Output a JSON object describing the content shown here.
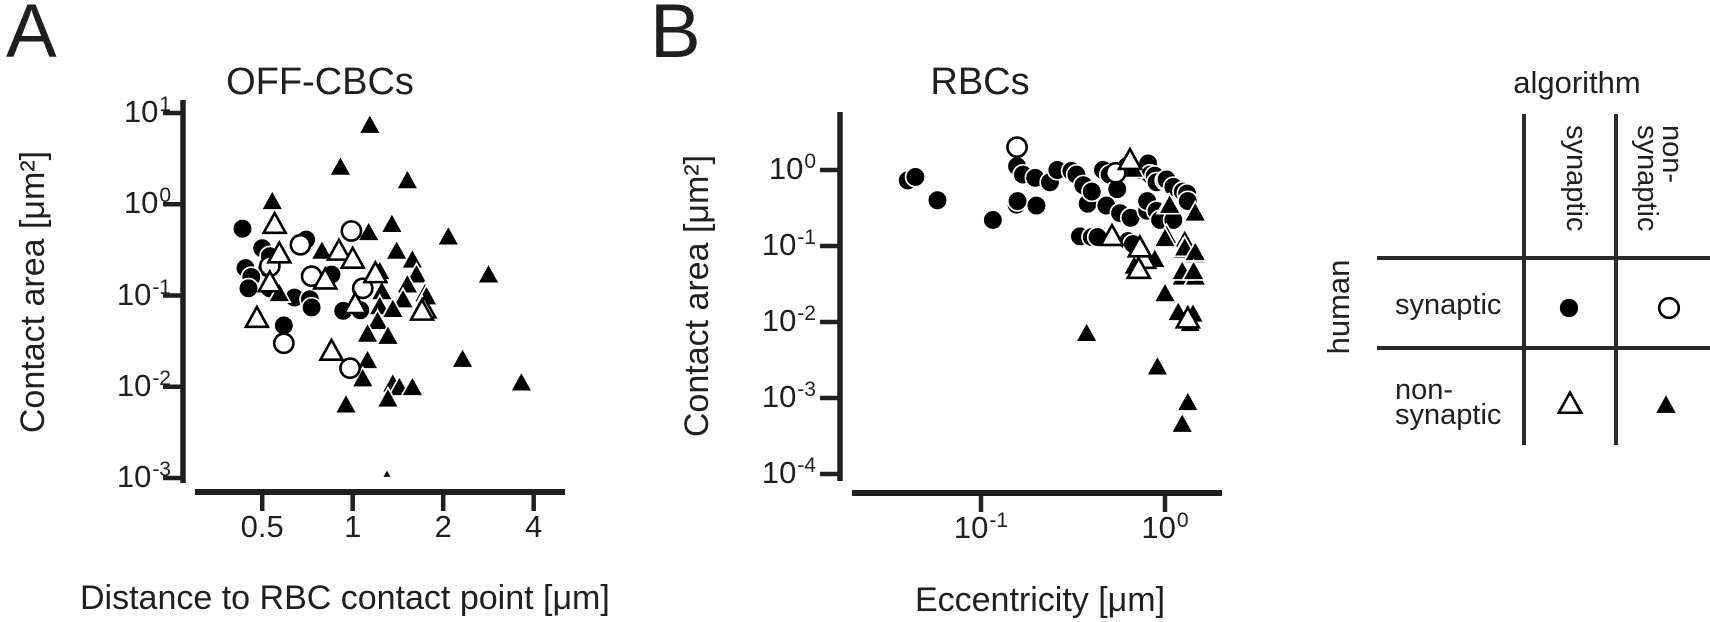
{
  "colors": {
    "ink": "#1f1f1f",
    "marker_fill": "#000000",
    "marker_open_fill": "#ffffff",
    "background": "#ffffff"
  },
  "panels": {
    "a": {
      "label": "A",
      "title": "OFF-CBCs",
      "xlabel": "Distance to RBC contact point [μm]",
      "ylabel": "Contact area [μm²]"
    },
    "b": {
      "label": "B",
      "title": "RBCs",
      "xlabel": "Eccentricity [μm]",
      "ylabel": "Contact area [μm²]"
    }
  },
  "legend": {
    "col_group_label": "algorithm",
    "row_group_label": "human",
    "col_labels": [
      [
        "synaptic"
      ],
      [
        "non-",
        "synaptic"
      ]
    ],
    "row_labels": [
      [
        "synaptic"
      ],
      [
        "non-",
        "synaptic"
      ]
    ],
    "cells": [
      {
        "row": "synaptic",
        "col": "synaptic",
        "marker": "filled-circle"
      },
      {
        "row": "synaptic",
        "col": "non-synaptic",
        "marker": "open-circle"
      },
      {
        "row": "non-synaptic",
        "col": "synaptic",
        "marker": "open-triangle"
      },
      {
        "row": "non-synaptic",
        "col": "non-synaptic",
        "marker": "filled-triangle"
      }
    ]
  },
  "chart_data": [
    {
      "id": "off_cbcs",
      "type": "scatter",
      "title": "OFF-CBCs",
      "xlabel": "Distance to RBC contact point [μm]",
      "ylabel": "Contact area [μm²]",
      "x_scale": "log",
      "y_scale": "log",
      "xlim": [
        0.3,
        5.1
      ],
      "ylim": [
        0.0009,
        14
      ],
      "grid": false,
      "xticks": [
        {
          "v": 0.5,
          "label": "0.5"
        },
        {
          "v": 1,
          "label": "1"
        },
        {
          "v": 2,
          "label": "2"
        },
        {
          "v": 4,
          "label": "4"
        }
      ],
      "yticks": [
        {
          "v": 10,
          "base": "10",
          "exp": "1"
        },
        {
          "v": 1,
          "base": "10",
          "exp": "0"
        },
        {
          "v": 0.1,
          "base": "10",
          "exp": "-1"
        },
        {
          "v": 0.01,
          "base": "10",
          "exp": "-2"
        },
        {
          "v": 0.001,
          "base": "10",
          "exp": "-3"
        }
      ],
      "series": [
        {
          "name": "human synaptic / algorithm synaptic",
          "marker": "filled-circle",
          "points": [
            [
              0.43,
              0.54
            ],
            [
              0.5,
              0.33
            ],
            [
              0.7,
              0.41
            ],
            [
              0.53,
              0.27
            ],
            [
              0.44,
              0.2
            ],
            [
              0.52,
              0.2
            ],
            [
              0.46,
              0.16
            ],
            [
              0.85,
              0.17
            ],
            [
              0.45,
              0.12
            ],
            [
              0.53,
              0.12
            ],
            [
              0.64,
              0.095
            ],
            [
              0.72,
              0.091
            ],
            [
              0.73,
              0.074
            ],
            [
              0.59,
              0.047
            ],
            [
              0.93,
              0.068
            ],
            [
              1.06,
              0.069
            ]
          ]
        },
        {
          "name": "human non-synaptic / algorithm non-synaptic",
          "marker": "filled-triangle",
          "points": [
            [
              1.14,
              7.2
            ],
            [
              0.91,
              2.5
            ],
            [
              1.52,
              1.78
            ],
            [
              0.54,
              1.05
            ],
            [
              1.13,
              0.48
            ],
            [
              1.35,
              0.59
            ],
            [
              2.08,
              0.43
            ],
            [
              2.83,
              0.165
            ],
            [
              0.79,
              0.3
            ],
            [
              1.4,
              0.3
            ],
            [
              1.58,
              0.24
            ],
            [
              1.23,
              0.18
            ],
            [
              1.63,
              0.165
            ],
            [
              0.57,
              0.103
            ],
            [
              1.25,
              0.108
            ],
            [
              1.52,
              0.128
            ],
            [
              1.47,
              0.088
            ],
            [
              1.74,
              0.103
            ],
            [
              1.76,
              0.095
            ],
            [
              1.23,
              0.074
            ],
            [
              1.36,
              0.069
            ],
            [
              1.7,
              0.074
            ],
            [
              1.21,
              0.051
            ],
            [
              1.12,
              0.037
            ],
            [
              1.31,
              0.035
            ],
            [
              1.12,
              0.019
            ],
            [
              2.32,
              0.0196
            ],
            [
              1.08,
              0.012
            ],
            [
              1.36,
              0.0105
            ],
            [
              1.43,
              0.0096
            ],
            [
              1.58,
              0.0096
            ],
            [
              1.31,
              0.0072
            ],
            [
              0.95,
              0.0062
            ],
            [
              3.64,
              0.0108
            ],
            [
              1.3,
              0.0011,
              0.45
            ]
          ]
        },
        {
          "name": "human synaptic / algorithm non-synaptic",
          "marker": "open-circle",
          "points": [
            [
              0.67,
              0.36
            ],
            [
              0.99,
              0.51
            ],
            [
              0.53,
              0.21
            ],
            [
              0.73,
              0.163
            ],
            [
              1.08,
              0.12
            ],
            [
              0.59,
              0.03
            ],
            [
              0.98,
              0.016
            ]
          ]
        },
        {
          "name": "human non-synaptic / algorithm synaptic",
          "marker": "open-triangle",
          "points": [
            [
              0.55,
              0.59
            ],
            [
              0.57,
              0.28
            ],
            [
              0.9,
              0.3
            ],
            [
              1.0,
              0.245
            ],
            [
              0.53,
              0.135
            ],
            [
              0.81,
              0.145
            ],
            [
              1.19,
              0.17
            ],
            [
              0.48,
              0.055
            ],
            [
              1.02,
              0.078
            ],
            [
              0.85,
              0.024
            ],
            [
              1.73,
              0.07
            ],
            [
              1.7,
              0.066
            ]
          ]
        }
      ]
    },
    {
      "id": "rbcs",
      "type": "scatter",
      "title": "RBCs",
      "xlabel": "Eccentricity [μm]",
      "ylabel": "Contact area [μm²]",
      "x_scale": "log",
      "y_scale": "log",
      "xlim": [
        0.02,
        2.0
      ],
      "ylim": [
        8e-05,
        5.8
      ],
      "grid": false,
      "xticks": [
        {
          "v": 0.1,
          "base": "10",
          "exp": "-1"
        },
        {
          "v": 1,
          "base": "10",
          "exp": "0"
        }
      ],
      "yticks": [
        {
          "v": 1,
          "base": "10",
          "exp": "0"
        },
        {
          "v": 0.1,
          "base": "10",
          "exp": "-1"
        },
        {
          "v": 0.01,
          "base": "10",
          "exp": "-2"
        },
        {
          "v": 0.001,
          "base": "10",
          "exp": "-3"
        },
        {
          "v": 0.0001,
          "base": "10",
          "exp": "-4"
        }
      ],
      "series": [
        {
          "name": "human synaptic / algorithm synaptic",
          "marker": "filled-circle",
          "points": [
            [
              0.04,
              0.73
            ],
            [
              0.044,
              0.81
            ],
            [
              0.058,
              0.4
            ],
            [
              0.116,
              0.22
            ],
            [
              0.156,
              0.35
            ],
            [
              0.157,
              1.12
            ],
            [
              0.158,
              0.39
            ],
            [
              0.169,
              0.87
            ],
            [
              0.197,
              0.79
            ],
            [
              0.2,
              0.34
            ],
            [
              0.237,
              0.69
            ],
            [
              0.26,
              1.0
            ],
            [
              0.31,
              0.97
            ],
            [
              0.33,
              0.87
            ],
            [
              0.345,
              0.134
            ],
            [
              0.36,
              0.63
            ],
            [
              0.38,
              0.36
            ],
            [
              0.4,
              0.52
            ],
            [
              0.4,
              0.131
            ],
            [
              0.43,
              0.131
            ],
            [
              0.46,
              1.0
            ],
            [
              0.48,
              0.34
            ],
            [
              0.5,
              0.87
            ],
            [
              0.55,
              0.56
            ],
            [
              0.57,
              0.27
            ],
            [
              0.62,
              1.12
            ],
            [
              0.63,
              0.116
            ],
            [
              0.65,
              0.235
            ],
            [
              0.67,
              0.106
            ],
            [
              0.73,
              1.0
            ],
            [
              0.8,
              0.29
            ],
            [
              0.8,
              0.39
            ],
            [
              0.81,
              1.22
            ],
            [
              0.83,
              0.87
            ],
            [
              0.88,
              0.84
            ],
            [
              0.9,
              0.69
            ],
            [
              0.9,
              0.29
            ],
            [
              0.94,
              0.22
            ],
            [
              1.0,
              0.73
            ],
            [
              1.02,
              0.75
            ],
            [
              1.11,
              0.6
            ],
            [
              1.11,
              0.22
            ],
            [
              1.25,
              0.52
            ],
            [
              1.32,
              0.49
            ],
            [
              1.33,
              0.39
            ]
          ]
        },
        {
          "name": "human non-synaptic / algorithm non-synaptic",
          "marker": "filled-triangle",
          "points": [
            [
              0.67,
              1.0
            ],
            [
              1.04,
              0.335
            ],
            [
              1.06,
              0.335
            ],
            [
              1.46,
              0.265
            ],
            [
              1.02,
              0.134
            ],
            [
              1.28,
              0.116
            ],
            [
              0.68,
              0.053
            ],
            [
              0.86,
              0.062
            ],
            [
              1.25,
              0.086
            ],
            [
              1.46,
              0.075
            ],
            [
              1.24,
              0.038
            ],
            [
              1.46,
              0.038
            ],
            [
              1.0,
              0.122
            ],
            [
              1.0,
              0.023
            ],
            [
              1.18,
              0.013
            ],
            [
              1.42,
              0.0124
            ],
            [
              1.37,
              0.0093
            ],
            [
              0.375,
              0.0069
            ],
            [
              0.91,
              0.0025
            ],
            [
              1.33,
              0.00085
            ],
            [
              1.24,
              0.00044
            ],
            [
              1.28,
              0.092
            ],
            [
              1.46,
              0.08
            ],
            [
              0.88,
              0.065
            ],
            [
              1.24,
              0.045
            ],
            [
              1.43,
              0.045
            ]
          ]
        },
        {
          "name": "human synaptic / algorithm non-synaptic",
          "marker": "open-circle",
          "points": [
            [
              0.157,
              2.0
            ],
            [
              0.54,
              0.92
            ]
          ]
        },
        {
          "name": "human non-synaptic / algorithm synaptic",
          "marker": "open-triangle",
          "points": [
            [
              0.645,
              1.3
            ],
            [
              0.515,
              0.13
            ],
            [
              0.77,
              0.065
            ],
            [
              0.72,
              0.048
            ],
            [
              0.73,
              0.092
            ],
            [
              1.33,
              0.0107
            ]
          ]
        }
      ]
    }
  ]
}
